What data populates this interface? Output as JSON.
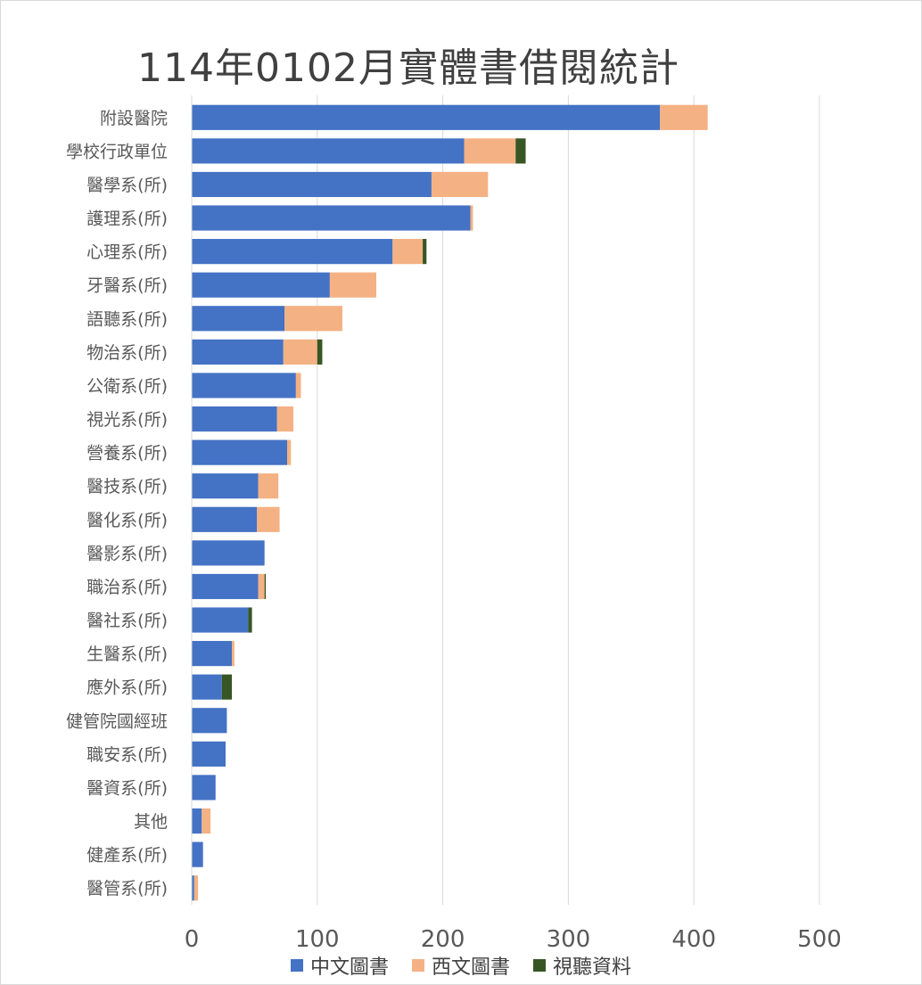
{
  "chart_data": {
    "type": "bar",
    "orientation": "horizontal",
    "stacked": true,
    "title": "114年0102月實體書借閱統計",
    "xlabel": "",
    "ylabel": "",
    "xlim": [
      0,
      500
    ],
    "x_ticks": [
      "0",
      "100",
      "200",
      "300",
      "400",
      "500"
    ],
    "x_tick_values": [
      0,
      100,
      200,
      300,
      400,
      500
    ],
    "grid": "vertical",
    "legend_position": "bottom",
    "categories": [
      "附設醫院",
      "學校行政單位",
      "醫學系(所)",
      "護理系(所)",
      "心理系(所)",
      "牙醫系(所)",
      "語聽系(所)",
      "物治系(所)",
      "公衛系(所)",
      "視光系(所)",
      "營養系(所)",
      "醫技系(所)",
      "醫化系(所)",
      "醫影系(所)",
      "職治系(所)",
      "醫社系(所)",
      "生醫系(所)",
      "應外系(所)",
      "健管院國經班",
      "職安系(所)",
      "醫資系(所)",
      "其他",
      "健產系(所)",
      "醫管系(所)"
    ],
    "series": [
      {
        "name": "中文圖書",
        "color": "#4472c4",
        "values": [
          373,
          217,
          191,
          222,
          160,
          110,
          74,
          73,
          83,
          68,
          76,
          53,
          52,
          58,
          53,
          45,
          32,
          24,
          28,
          27,
          19,
          8,
          9,
          2
        ]
      },
      {
        "name": "西文圖書",
        "color": "#f4b183",
        "values": [
          38,
          41,
          45,
          2,
          24,
          37,
          46,
          27,
          4,
          13,
          3,
          16,
          18,
          0,
          5,
          0,
          2,
          0,
          0,
          0,
          0,
          7,
          0,
          3
        ]
      },
      {
        "name": "視聽資料",
        "color": "#375623",
        "values": [
          0,
          8,
          0,
          0,
          3,
          0,
          0,
          4,
          0,
          0,
          0,
          0,
          0,
          0,
          1,
          3,
          0,
          8,
          0,
          0,
          0,
          0,
          0,
          0
        ]
      }
    ]
  }
}
